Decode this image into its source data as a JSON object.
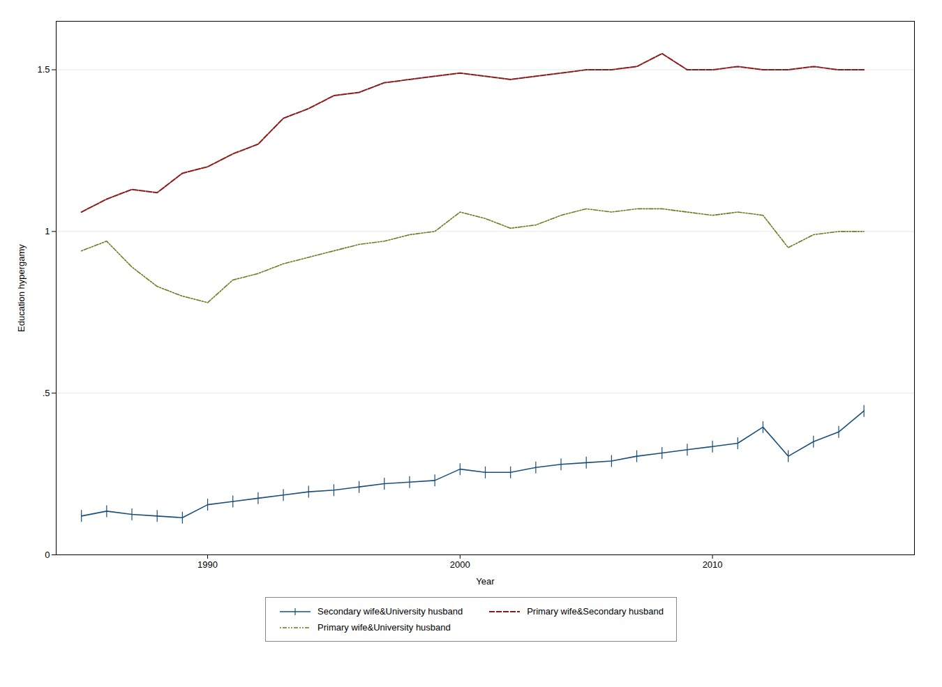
{
  "chart_data": {
    "type": "line",
    "xlabel": "Year",
    "ylabel": "Education hypergamy",
    "x": [
      1985,
      1986,
      1987,
      1988,
      1989,
      1990,
      1991,
      1992,
      1993,
      1994,
      1995,
      1996,
      1997,
      1998,
      1999,
      2000,
      2001,
      2002,
      2003,
      2004,
      2005,
      2006,
      2007,
      2008,
      2009,
      2010,
      2011,
      2012,
      2013,
      2014,
      2015,
      2016
    ],
    "series": [
      {
        "name": "Secondary wife&University husband",
        "color": "#1a4f7a",
        "line_style": "solid",
        "marker": "vline",
        "values": [
          0.12,
          0.135,
          0.125,
          0.12,
          0.115,
          0.155,
          0.165,
          0.175,
          0.185,
          0.195,
          0.2,
          0.21,
          0.22,
          0.225,
          0.23,
          0.265,
          0.255,
          0.255,
          0.27,
          0.28,
          0.285,
          0.29,
          0.305,
          0.315,
          0.325,
          0.335,
          0.345,
          0.395,
          0.305,
          0.35,
          0.38,
          0.445
        ]
      },
      {
        "name": "Primary wife&Secondary husband",
        "color": "#8b1a1a",
        "line_style": "dashed",
        "values": [
          1.06,
          1.1,
          1.13,
          1.12,
          1.18,
          1.2,
          1.24,
          1.27,
          1.35,
          1.38,
          1.42,
          1.43,
          1.46,
          1.47,
          1.48,
          1.49,
          1.48,
          1.47,
          1.48,
          1.49,
          1.5,
          1.5,
          1.51,
          1.55,
          1.5,
          1.5,
          1.51,
          1.5,
          1.5,
          1.51,
          1.5,
          1.5
        ]
      },
      {
        "name": "Primary wife&University husband",
        "color": "#6b7a1e",
        "line_style": "dashdot",
        "values": [
          0.94,
          0.97,
          0.89,
          0.83,
          0.8,
          0.78,
          0.85,
          0.87,
          0.9,
          0.92,
          0.94,
          0.96,
          0.97,
          0.99,
          1.0,
          1.06,
          1.04,
          1.01,
          1.02,
          1.05,
          1.07,
          1.06,
          1.07,
          1.07,
          1.06,
          1.05,
          1.06,
          1.05,
          0.95,
          0.99,
          1.0,
          1.0
        ]
      }
    ],
    "xlim": [
      1984,
      2018
    ],
    "xticks": [
      1990,
      2000,
      2010
    ],
    "ylim": [
      0,
      1.65
    ],
    "yticks": [
      0,
      {
        "value": 0.5,
        "label": ".5"
      },
      1,
      1.5
    ],
    "grid": true,
    "legend": "bottom"
  }
}
